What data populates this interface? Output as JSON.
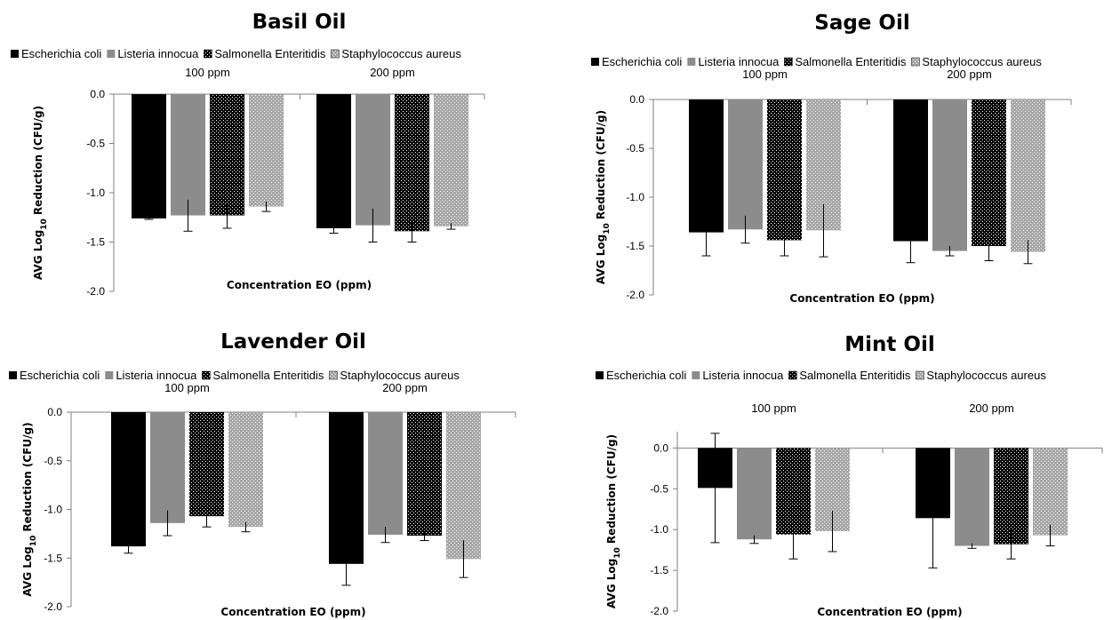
{
  "figure": {
    "ylabel": "AVG Log",
    "ylabel_sub": "10",
    "ylabel_rest": " Reduction (CFU/g)",
    "xlabel": "Concentration EO (ppm)",
    "legend": [
      {
        "name": "Escherichia coli",
        "color": "#000000",
        "pattern": "solid-black"
      },
      {
        "name": "Listeria innocua",
        "color": "#8c8c8c",
        "pattern": "solid-gray"
      },
      {
        "name": "Salmonella Enteritidis",
        "color": "#000000",
        "pattern": "black-dots"
      },
      {
        "name": "Staphylococcus aureus",
        "color": "#a6a6a6",
        "pattern": "gray-dots"
      }
    ]
  },
  "chart_data": [
    {
      "type": "bar",
      "title": "Basil Oil",
      "categories": [
        "100 ppm",
        "200 ppm"
      ],
      "ylim": [
        -2.0,
        0.0
      ],
      "yticks": [
        "0.0",
        "-0.5",
        "-1.0",
        "-1.5",
        "-2.0"
      ],
      "series": [
        {
          "name": "Escherichia coli",
          "values": [
            -1.26,
            -1.36
          ],
          "errors": [
            0.01,
            0.05
          ]
        },
        {
          "name": "Listeria innocua",
          "values": [
            -1.23,
            -1.33
          ],
          "errors": [
            0.16,
            0.17
          ]
        },
        {
          "name": "Salmonella Enteritidis",
          "values": [
            -1.23,
            -1.39
          ],
          "errors": [
            0.13,
            0.11
          ]
        },
        {
          "name": "Staphylococcus aureus",
          "values": [
            -1.14,
            -1.34
          ],
          "errors": [
            0.05,
            0.03
          ]
        }
      ]
    },
    {
      "type": "bar",
      "title": "Sage Oil",
      "categories": [
        "100 ppm",
        "200 ppm"
      ],
      "ylim": [
        -2.0,
        0.0
      ],
      "yticks": [
        "0.0",
        "-0.5",
        "-1.0",
        "-1.5",
        "-2.0"
      ],
      "series": [
        {
          "name": "Escherichia coli",
          "values": [
            -1.36,
            -1.45
          ],
          "errors": [
            0.24,
            0.22
          ]
        },
        {
          "name": "Listeria innocua",
          "values": [
            -1.33,
            -1.55
          ],
          "errors": [
            0.14,
            0.05
          ]
        },
        {
          "name": "Salmonella Enteritidis",
          "values": [
            -1.44,
            -1.5
          ],
          "errors": [
            0.16,
            0.15
          ]
        },
        {
          "name": "Staphylococcus aureus",
          "values": [
            -1.34,
            -1.56
          ],
          "errors": [
            0.27,
            0.12
          ]
        }
      ]
    },
    {
      "type": "bar",
      "title": "Lavender Oil",
      "categories": [
        "100 ppm",
        "200 ppm"
      ],
      "ylim": [
        -2.0,
        0.0
      ],
      "yticks": [
        "0.0",
        "-0.5",
        "-1.0",
        "-1.5",
        "-2.0"
      ],
      "series": [
        {
          "name": "Escherichia coli",
          "values": [
            -1.38,
            -1.56
          ],
          "errors": [
            0.07,
            0.22
          ]
        },
        {
          "name": "Listeria innocua",
          "values": [
            -1.14,
            -1.26
          ],
          "errors": [
            0.13,
            0.08
          ]
        },
        {
          "name": "Salmonella Enteritidis",
          "values": [
            -1.07,
            -1.27
          ],
          "errors": [
            0.11,
            0.05
          ]
        },
        {
          "name": "Staphylococcus aureus",
          "values": [
            -1.18,
            -1.51
          ],
          "errors": [
            0.05,
            0.19
          ]
        }
      ]
    },
    {
      "type": "bar",
      "title": "Mint Oil",
      "categories": [
        "100 ppm",
        "200 ppm"
      ],
      "ylim": [
        -2.0,
        0.2
      ],
      "yticks": [
        "0.0",
        "-0.5",
        "-1.0",
        "-1.5",
        "-2.0"
      ],
      "series": [
        {
          "name": "Escherichia coli",
          "values": [
            -0.49,
            -0.86
          ],
          "errors": [
            0.67,
            0.61
          ]
        },
        {
          "name": "Listeria innocua",
          "values": [
            -1.12,
            -1.2
          ],
          "errors": [
            0.05,
            0.03
          ]
        },
        {
          "name": "Salmonella Enteritidis",
          "values": [
            -1.06,
            -1.18
          ],
          "errors": [
            0.3,
            0.18
          ]
        },
        {
          "name": "Staphylococcus aureus",
          "values": [
            -1.02,
            -1.07
          ],
          "errors": [
            0.25,
            0.13
          ]
        }
      ]
    }
  ]
}
